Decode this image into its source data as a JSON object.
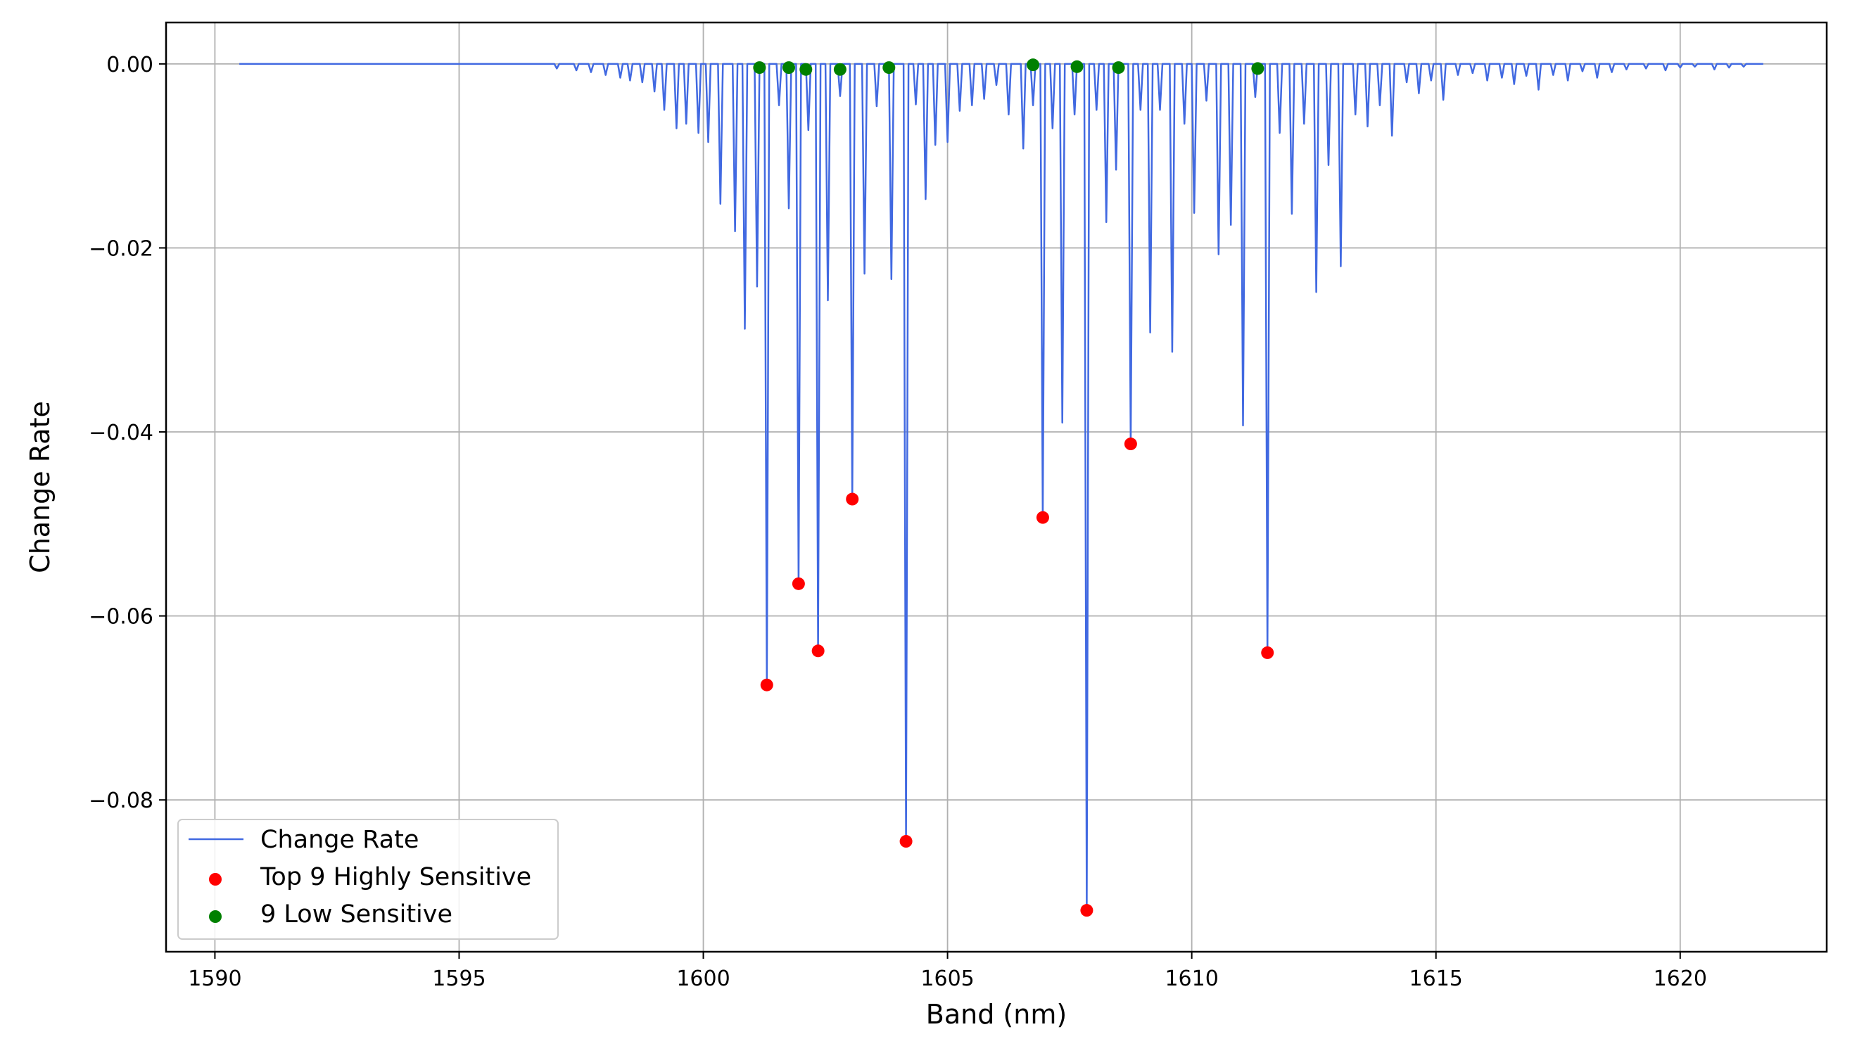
{
  "chart_data": {
    "type": "line",
    "title": "",
    "xlabel": "Band (nm)",
    "ylabel": "Change Rate",
    "xlim": [
      1589.0,
      1623.0
    ],
    "ylim": [
      -0.0965,
      0.0045
    ],
    "x_ticks": [
      1590,
      1595,
      1600,
      1605,
      1610,
      1615,
      1620
    ],
    "x_tick_labels": [
      "1590",
      "1595",
      "1600",
      "1605",
      "1610",
      "1615",
      "1620"
    ],
    "y_ticks": [
      0.0,
      -0.02,
      -0.04,
      -0.06,
      -0.08
    ],
    "y_tick_labels": [
      "0.00",
      "−0.02",
      "−0.04",
      "−0.06",
      "−0.08"
    ],
    "grid": true,
    "legend_position": "lower-left",
    "line_range": [
      1590.5,
      1621.7
    ],
    "series": [
      {
        "name": "Change Rate",
        "kind": "line",
        "color": "#4169e1",
        "dips": [
          [
            1597.0,
            -0.0005
          ],
          [
            1597.4,
            -0.0007
          ],
          [
            1597.7,
            -0.0009
          ],
          [
            1598.0,
            -0.0012
          ],
          [
            1598.3,
            -0.0015
          ],
          [
            1598.5,
            -0.0018
          ],
          [
            1598.75,
            -0.002
          ],
          [
            1599.0,
            -0.003
          ],
          [
            1599.2,
            -0.005
          ],
          [
            1599.45,
            -0.007
          ],
          [
            1599.65,
            -0.0065
          ],
          [
            1599.9,
            -0.0075
          ],
          [
            1600.1,
            -0.0085
          ],
          [
            1600.35,
            -0.0152
          ],
          [
            1600.65,
            -0.0182
          ],
          [
            1600.85,
            -0.0288
          ],
          [
            1601.1,
            -0.0242
          ],
          [
            1601.3,
            -0.0675
          ],
          [
            1601.55,
            -0.0045
          ],
          [
            1601.75,
            -0.0157
          ],
          [
            1601.95,
            -0.0565
          ],
          [
            1602.15,
            -0.0072
          ],
          [
            1602.35,
            -0.0638
          ],
          [
            1602.55,
            -0.0257
          ],
          [
            1602.8,
            -0.0035
          ],
          [
            1603.05,
            -0.0473
          ],
          [
            1603.3,
            -0.0228
          ],
          [
            1603.55,
            -0.0046
          ],
          [
            1603.85,
            -0.0234
          ],
          [
            1604.15,
            -0.0845
          ],
          [
            1604.35,
            -0.0044
          ],
          [
            1604.55,
            -0.0147
          ],
          [
            1604.75,
            -0.0088
          ],
          [
            1605.0,
            -0.0085
          ],
          [
            1605.25,
            -0.0051
          ],
          [
            1605.5,
            -0.0045
          ],
          [
            1605.75,
            -0.0038
          ],
          [
            1606.0,
            -0.0023
          ],
          [
            1606.25,
            -0.0055
          ],
          [
            1606.55,
            -0.0092
          ],
          [
            1606.75,
            -0.0045
          ],
          [
            1606.95,
            -0.0493
          ],
          [
            1607.15,
            -0.007
          ],
          [
            1607.35,
            -0.039
          ],
          [
            1607.6,
            -0.0055
          ],
          [
            1607.85,
            -0.092
          ],
          [
            1608.05,
            -0.005
          ],
          [
            1608.25,
            -0.0172
          ],
          [
            1608.45,
            -0.0115
          ],
          [
            1608.75,
            -0.0413
          ],
          [
            1608.95,
            -0.005
          ],
          [
            1609.15,
            -0.0292
          ],
          [
            1609.35,
            -0.005
          ],
          [
            1609.6,
            -0.0313
          ],
          [
            1609.85,
            -0.0065
          ],
          [
            1610.05,
            -0.0162
          ],
          [
            1610.3,
            -0.004
          ],
          [
            1610.55,
            -0.0207
          ],
          [
            1610.8,
            -0.0175
          ],
          [
            1611.05,
            -0.0393
          ],
          [
            1611.3,
            -0.0036
          ],
          [
            1611.55,
            -0.064
          ],
          [
            1611.8,
            -0.0075
          ],
          [
            1612.05,
            -0.0163
          ],
          [
            1612.3,
            -0.0065
          ],
          [
            1612.55,
            -0.0248
          ],
          [
            1612.8,
            -0.011
          ],
          [
            1613.05,
            -0.022
          ],
          [
            1613.35,
            -0.0055
          ],
          [
            1613.6,
            -0.0068
          ],
          [
            1613.85,
            -0.0045
          ],
          [
            1614.1,
            -0.0078
          ],
          [
            1614.4,
            -0.002
          ],
          [
            1614.65,
            -0.0032
          ],
          [
            1614.9,
            -0.0018
          ],
          [
            1615.15,
            -0.0039
          ],
          [
            1615.45,
            -0.0012
          ],
          [
            1615.75,
            -0.001
          ],
          [
            1616.05,
            -0.0018
          ],
          [
            1616.35,
            -0.0015
          ],
          [
            1616.6,
            -0.0022
          ],
          [
            1616.85,
            -0.0013
          ],
          [
            1617.1,
            -0.0028
          ],
          [
            1617.4,
            -0.0012
          ],
          [
            1617.7,
            -0.0018
          ],
          [
            1618.0,
            -0.0008
          ],
          [
            1618.3,
            -0.0015
          ],
          [
            1618.6,
            -0.0009
          ],
          [
            1618.9,
            -0.0006
          ],
          [
            1619.3,
            -0.0005
          ],
          [
            1619.7,
            -0.0007
          ],
          [
            1620.0,
            -0.0004
          ],
          [
            1620.3,
            -0.0003
          ],
          [
            1620.7,
            -0.0006
          ],
          [
            1621.0,
            -0.0004
          ],
          [
            1621.3,
            -0.0003
          ]
        ]
      },
      {
        "name": "Top 9 Highly Sensitive",
        "kind": "scatter",
        "color": "#ff0000",
        "x": [
          1601.3,
          1601.95,
          1602.35,
          1603.05,
          1604.15,
          1606.95,
          1607.85,
          1608.75,
          1611.55
        ],
        "y": [
          -0.0675,
          -0.0565,
          -0.0638,
          -0.0473,
          -0.0845,
          -0.0493,
          -0.092,
          -0.0413,
          -0.064
        ]
      },
      {
        "name": "9 Low Sensitive",
        "kind": "scatter",
        "color": "#008000",
        "x": [
          1601.15,
          1601.75,
          1602.1,
          1602.8,
          1603.8,
          1606.75,
          1607.65,
          1608.5,
          1611.35
        ],
        "y": [
          -0.0004,
          -0.0004,
          -0.0006,
          -0.0006,
          -0.0004,
          -0.0001,
          -0.0003,
          -0.0004,
          -0.0005
        ]
      }
    ]
  }
}
